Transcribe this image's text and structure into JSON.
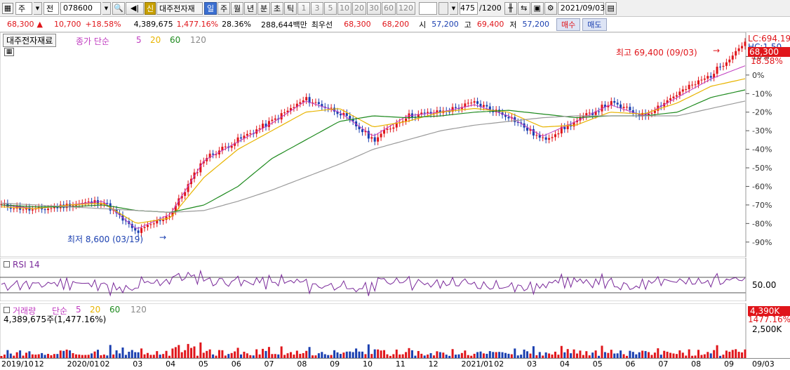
{
  "toolbar": {
    "type_value": "주",
    "mode_value": "전",
    "code_value": "078600",
    "new_badge": "신",
    "stock_name": "대주전자재",
    "periods": [
      "일",
      "주",
      "월",
      "년",
      "분",
      "초",
      "틱"
    ],
    "active_period": "일",
    "intervals": [
      "1",
      "3",
      "5",
      "10",
      "20",
      "30",
      "60",
      "120"
    ],
    "count_value": "475",
    "count_max": "/1200",
    "date_value": "2021/09/03"
  },
  "quote": {
    "price": "68,300",
    "change_arrow": "▲",
    "change": "10,700",
    "change_pct": "+18.58%",
    "volume": "4,389,675",
    "volume_pct": "1,477.16%",
    "turnover_pct": "28.36%",
    "amount": "288,644백만",
    "best_bid_label": "최우선",
    "best_ask": "68,300",
    "best_bid": "68,200",
    "open_label": "시",
    "open": "57,200",
    "high_label": "고",
    "high": "69,400",
    "low_label": "저",
    "low": "57,200",
    "buy_label": "매수",
    "sell_label": "매도"
  },
  "price_panel": {
    "name": "대주전자재료",
    "legend_prefix": "종가 단순",
    "ma_periods": [
      "5",
      "20",
      "60",
      "120"
    ],
    "ma_colors": [
      "#c03cc0",
      "#e8b400",
      "#1e8a1e",
      "#9a9a9a"
    ],
    "high_note": "최고 69,400 (09/03)",
    "low_note": "최저 8,600 (03/19)",
    "lc_label": "LC:694.19",
    "hc_label": "HC:1.50",
    "current_tag": "68,300",
    "current_pct": "18.58%",
    "y_ticks": [
      "10%",
      "0%",
      "-10%",
      "-20%",
      "-30%",
      "-40%",
      "-50%",
      "-60%",
      "-70%",
      "-80%",
      "-90%"
    ]
  },
  "rsi_panel": {
    "title": "RSI 14",
    "level_label": "50.00"
  },
  "volume_panel": {
    "title": "거래량",
    "legend_prefix": "단순",
    "ma_periods": [
      "5",
      "20",
      "60",
      "120"
    ],
    "current_value": "4,389,675주(1,477.16%)",
    "tag_value": "4,390K",
    "tag_pct": "1477.16%",
    "y_tick": "2,500K"
  },
  "x_axis": [
    "2019/10",
    "12",
    "2020/01",
    "02",
    "03",
    "04",
    "05",
    "06",
    "07",
    "08",
    "09",
    "10",
    "11",
    "12",
    "2021/01",
    "02",
    "03",
    "04",
    "05",
    "06",
    "07",
    "08",
    "09",
    "09/03"
  ],
  "chart_data": {
    "type": "line",
    "title": "대주전자재료",
    "x": [
      "2019/10",
      "2019/12",
      "2020/01",
      "2020/02",
      "2020/03",
      "2020/04",
      "2020/05",
      "2020/06",
      "2020/07",
      "2020/08",
      "2020/09",
      "2020/10",
      "2020/11",
      "2020/12",
      "2021/01",
      "2021/02",
      "2021/03",
      "2021/04",
      "2021/05",
      "2021/06",
      "2021/07",
      "2021/08",
      "2021/09"
    ],
    "series": [
      {
        "name": "종가",
        "values": [
          -70,
          -73,
          -70,
          -68,
          -85,
          -75,
          -45,
          -35,
          -25,
          -13,
          -20,
          -35,
          -22,
          -20,
          -15,
          -22,
          -35,
          -25,
          -15,
          -22,
          -10,
          0,
          18
        ]
      },
      {
        "name": "5",
        "values": [
          -70,
          -72,
          -70,
          -68,
          -83,
          -75,
          -46,
          -36,
          -26,
          -14,
          -20,
          -33,
          -22,
          -20,
          -16,
          -22,
          -33,
          -25,
          -16,
          -22,
          -12,
          -2,
          5
        ]
      },
      {
        "name": "20",
        "values": [
          -71,
          -72,
          -70,
          -69,
          -80,
          -77,
          -55,
          -40,
          -30,
          -20,
          -18,
          -28,
          -25,
          -20,
          -18,
          -20,
          -28,
          -27,
          -20,
          -21,
          -15,
          -6,
          -2
        ]
      },
      {
        "name": "60",
        "values": [
          -70,
          -71,
          -71,
          -70,
          -73,
          -74,
          -70,
          -60,
          -45,
          -35,
          -25,
          -22,
          -23,
          -22,
          -20,
          -19,
          -21,
          -23,
          -22,
          -22,
          -20,
          -12,
          -8
        ]
      },
      {
        "name": "120",
        "values": [
          -69,
          -70,
          -71,
          -72,
          -73,
          -74,
          -73,
          -68,
          -62,
          -55,
          -48,
          -40,
          -35,
          -30,
          -27,
          -25,
          -23,
          -22,
          -22,
          -22,
          -22,
          -18,
          -14
        ]
      }
    ],
    "ylim": [
      -95,
      20
    ],
    "ylabel": "",
    "xlabel": ""
  }
}
